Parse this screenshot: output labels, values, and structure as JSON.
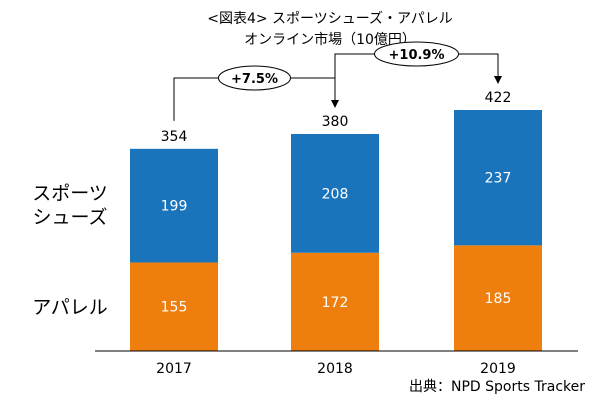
{
  "chart_data": {
    "type": "bar",
    "stacked": true,
    "title_line1": "<図表4> スポーツシューズ・アパレル",
    "title_line2": "オンライン市場（10億円）",
    "categories": [
      "2017",
      "2018",
      "2019"
    ],
    "series": [
      {
        "name": "アパレル",
        "values": [
          155,
          172,
          185
        ],
        "color": "#ee7f0f"
      },
      {
        "name_lines": [
          "スポーツ",
          "シューズ"
        ],
        "values": [
          199,
          208,
          237
        ],
        "color": "#1a74bc"
      }
    ],
    "totals": [
      354,
      380,
      422
    ],
    "growth_annotations": [
      {
        "from": "2017",
        "to": "2018",
        "label": "+7.5%"
      },
      {
        "from": "2018",
        "to": "2019",
        "label": "+10.9%"
      }
    ],
    "ylim": [
      0,
      422
    ],
    "grid": false,
    "legend_position": "left-inline"
  },
  "source_note": "出典：NPD Sports Tracker"
}
